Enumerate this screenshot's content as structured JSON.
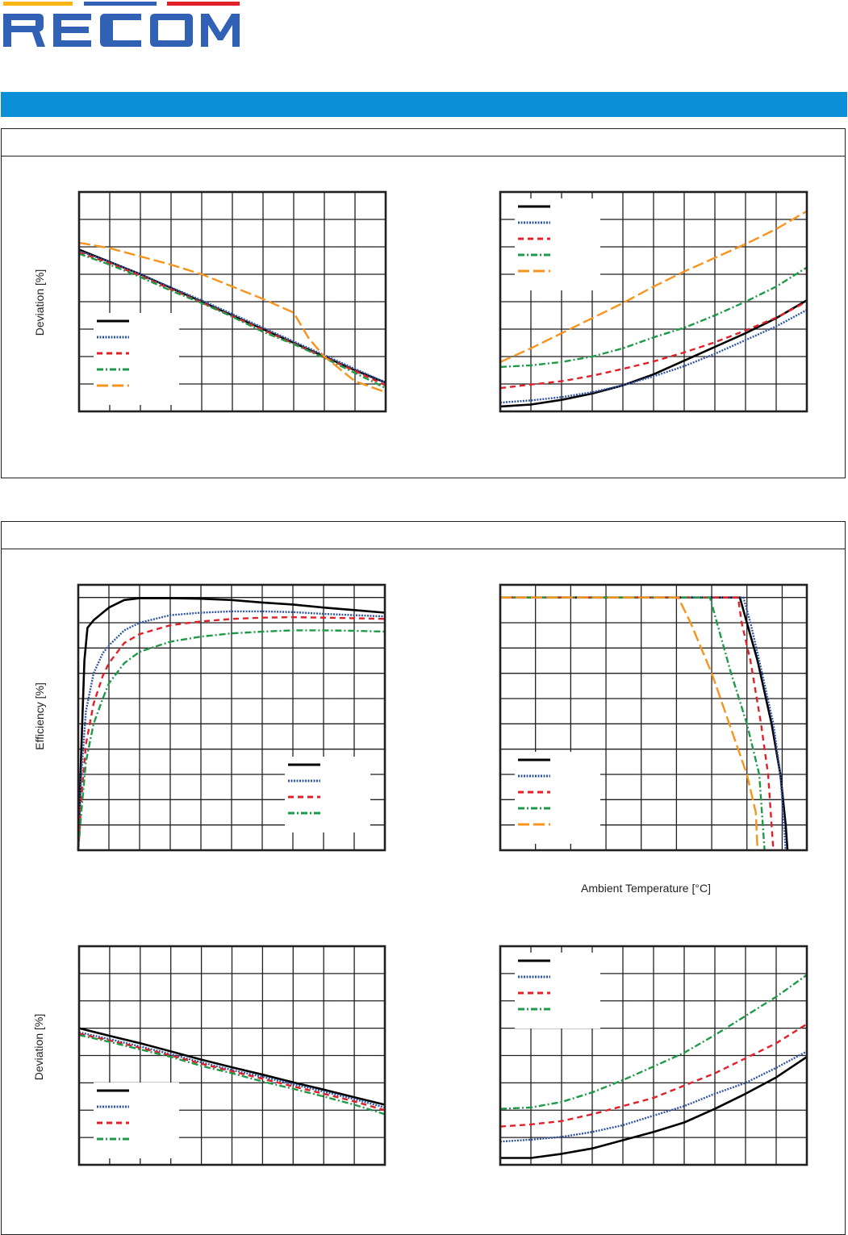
{
  "brand": {
    "logo_text": "RECOM",
    "bar_colors": [
      "#fdb515",
      "#3061b4",
      "#e32028"
    ],
    "logo_color": "#3061b4",
    "banner_color": "#0b8fd6"
  },
  "sections": [
    {
      "id": "section-1"
    },
    {
      "id": "section-2"
    }
  ],
  "style": {
    "grid_color": "#231f20",
    "series_styles": {
      "black": {
        "color": "#000000",
        "dash": "solid"
      },
      "blue": {
        "color": "#2f55a4",
        "dash": "dotted"
      },
      "red": {
        "color": "#e32028",
        "dash": "dashed"
      },
      "green": {
        "color": "#1f9a48",
        "dash": "dashdot"
      },
      "orange": {
        "color": "#f7941d",
        "dash": "longdash"
      }
    }
  },
  "chart_data": [
    {
      "type": "line",
      "title": "",
      "xlabel": "",
      "ylabel": "Deviation [%]",
      "xlim": [
        0,
        10
      ],
      "ylim": [
        0,
        8
      ],
      "x_divisions": 10,
      "y_divisions": 8,
      "grid": true,
      "legend": "lower-left",
      "series": [
        {
          "name": "",
          "style": "black",
          "x": [
            0,
            1,
            2,
            3,
            4,
            5,
            6,
            7,
            8,
            9,
            10
          ],
          "y": [
            5.9,
            5.45,
            5.0,
            4.5,
            4.0,
            3.5,
            3.0,
            2.5,
            2.0,
            1.5,
            1.05
          ]
        },
        {
          "name": "",
          "style": "blue",
          "x": [
            0,
            1,
            2,
            3,
            4,
            5,
            6,
            7,
            8,
            9,
            10
          ],
          "y": [
            5.85,
            5.45,
            5.0,
            4.52,
            4.05,
            3.55,
            3.05,
            2.55,
            2.05,
            1.55,
            1.05
          ]
        },
        {
          "name": "",
          "style": "red",
          "x": [
            0,
            1,
            2,
            3,
            4,
            5,
            6,
            7,
            8,
            9,
            10
          ],
          "y": [
            5.8,
            5.4,
            4.95,
            4.45,
            3.97,
            3.47,
            2.97,
            2.47,
            1.97,
            1.47,
            0.95
          ]
        },
        {
          "name": "",
          "style": "green",
          "x": [
            0,
            1,
            2,
            3,
            4,
            5,
            6,
            7,
            8,
            9,
            10
          ],
          "y": [
            5.75,
            5.35,
            4.9,
            4.4,
            3.95,
            3.45,
            2.9,
            2.45,
            1.95,
            1.4,
            0.85
          ]
        },
        {
          "name": "",
          "style": "orange",
          "x": [
            0,
            1,
            2,
            3,
            4,
            5,
            6,
            7,
            7.5,
            8,
            8.5,
            9,
            10
          ],
          "y": [
            6.15,
            5.95,
            5.65,
            5.35,
            5.0,
            4.55,
            4.1,
            3.6,
            2.65,
            2.0,
            1.55,
            1.1,
            0.7
          ]
        }
      ]
    },
    {
      "type": "line",
      "title": "",
      "xlabel": "",
      "ylabel": "",
      "xlim": [
        0,
        10
      ],
      "ylim": [
        0,
        8
      ],
      "x_divisions": 10,
      "y_divisions": 8,
      "grid": true,
      "legend": "upper-left",
      "series": [
        {
          "name": "",
          "style": "black",
          "x": [
            0,
            1,
            2,
            3,
            4,
            5,
            6,
            7,
            8,
            9,
            10
          ],
          "y": [
            0.18,
            0.25,
            0.42,
            0.65,
            0.95,
            1.35,
            1.85,
            2.35,
            2.85,
            3.4,
            4.05
          ]
        },
        {
          "name": "",
          "style": "blue",
          "x": [
            0,
            1,
            2,
            3,
            4,
            5,
            6,
            7,
            8,
            9,
            10
          ],
          "y": [
            0.32,
            0.4,
            0.52,
            0.7,
            0.95,
            1.28,
            1.65,
            2.1,
            2.6,
            3.1,
            3.7
          ]
        },
        {
          "name": "",
          "style": "red",
          "x": [
            0,
            1,
            2,
            3,
            4,
            5,
            6,
            7,
            8,
            9,
            10
          ],
          "y": [
            0.85,
            0.98,
            1.1,
            1.3,
            1.55,
            1.82,
            2.15,
            2.52,
            2.95,
            3.42,
            4.0
          ]
        },
        {
          "name": "",
          "style": "green",
          "x": [
            0,
            1,
            2,
            3,
            4,
            5,
            6,
            7,
            8,
            9,
            10
          ],
          "y": [
            1.62,
            1.68,
            1.8,
            2.0,
            2.3,
            2.7,
            3.05,
            3.5,
            4.0,
            4.55,
            5.25
          ]
        },
        {
          "name": "",
          "style": "orange",
          "x": [
            0,
            1,
            2,
            3,
            4,
            5,
            6,
            7,
            8,
            9,
            10
          ],
          "y": [
            1.8,
            2.3,
            2.85,
            3.4,
            3.95,
            4.55,
            5.1,
            5.6,
            6.1,
            6.65,
            7.3
          ]
        }
      ]
    },
    {
      "type": "line",
      "title": "",
      "xlabel": "",
      "ylabel": "Efficiency [%]",
      "xlim": [
        0,
        10
      ],
      "ylim": [
        0,
        10.5
      ],
      "x_divisions": 10,
      "y_divisions": 10,
      "grid": true,
      "legend": "lower-right",
      "series": [
        {
          "name": "",
          "style": "black",
          "x": [
            0,
            0.1,
            0.2,
            0.3,
            0.5,
            1,
            1.5,
            2,
            3,
            4,
            5,
            6,
            7,
            8,
            9,
            10
          ],
          "y": [
            0,
            4,
            7.5,
            8.8,
            9.1,
            9.6,
            9.9,
            9.97,
            9.97,
            9.95,
            9.9,
            9.8,
            9.72,
            9.6,
            9.5,
            9.4
          ]
        },
        {
          "name": "",
          "style": "blue",
          "x": [
            0,
            0.1,
            0.25,
            0.5,
            0.8,
            1,
            1.5,
            2,
            3,
            4,
            5,
            6,
            7,
            8,
            9,
            10
          ],
          "y": [
            0,
            3,
            5.5,
            7.0,
            7.8,
            8.1,
            8.7,
            9.0,
            9.3,
            9.4,
            9.45,
            9.45,
            9.42,
            9.35,
            9.3,
            9.25
          ]
        },
        {
          "name": "",
          "style": "red",
          "x": [
            0,
            0.1,
            0.25,
            0.5,
            0.8,
            1,
            1.5,
            2,
            3,
            4,
            5,
            6,
            7,
            8,
            9,
            10
          ],
          "y": [
            0,
            2,
            4.2,
            5.8,
            6.9,
            7.4,
            8.2,
            8.55,
            8.9,
            9.05,
            9.15,
            9.2,
            9.22,
            9.2,
            9.18,
            9.15
          ]
        },
        {
          "name": "",
          "style": "green",
          "x": [
            0,
            0.1,
            0.25,
            0.5,
            0.8,
            1,
            1.5,
            2,
            3,
            4,
            5,
            6,
            7,
            8,
            9,
            10
          ],
          "y": [
            0,
            1.5,
            3.5,
            5.0,
            6.0,
            6.6,
            7.4,
            7.85,
            8.25,
            8.45,
            8.58,
            8.65,
            8.7,
            8.7,
            8.68,
            8.65
          ]
        }
      ]
    },
    {
      "type": "line",
      "title": "",
      "xlabel": "Ambient Temperature [°C]",
      "ylabel": "",
      "xlim": [
        0,
        8.7
      ],
      "ylim": [
        0,
        10.5
      ],
      "x_divisions": 8.7,
      "y_divisions": 10,
      "grid": true,
      "legend": "lower-left",
      "series": [
        {
          "name": "",
          "style": "black",
          "x": [
            0,
            6.8,
            7.0,
            7.3,
            7.7,
            7.95,
            8.1,
            8.15
          ],
          "y": [
            10,
            10,
            9,
            7.5,
            5,
            3,
            1,
            0
          ]
        },
        {
          "name": "",
          "style": "blue",
          "x": [
            0,
            6.9,
            7.1,
            7.35,
            7.75,
            7.95,
            8.05,
            8.1
          ],
          "y": [
            10,
            10,
            9,
            7.5,
            5,
            3,
            1,
            0
          ]
        },
        {
          "name": "",
          "style": "red",
          "x": [
            0,
            6.75,
            6.85,
            7.1,
            7.4,
            7.6,
            7.7,
            7.75
          ],
          "y": [
            10,
            10,
            9,
            7.5,
            5,
            3,
            1,
            0
          ]
        },
        {
          "name": "",
          "style": "green",
          "x": [
            0,
            5.95,
            6.15,
            6.55,
            7.0,
            7.35,
            7.45,
            7.5
          ],
          "y": [
            10,
            10,
            9,
            7.0,
            5,
            3,
            1,
            0
          ]
        },
        {
          "name": "",
          "style": "orange",
          "x": [
            0,
            5.05,
            5.4,
            6.0,
            6.5,
            7.0,
            7.25,
            7.3
          ],
          "y": [
            10,
            10,
            9,
            7.0,
            5,
            3,
            1.5,
            0
          ]
        }
      ]
    },
    {
      "type": "line",
      "title": "",
      "xlabel": "",
      "ylabel": "Deviation [%]",
      "xlim": [
        0,
        10
      ],
      "ylim": [
        0,
        8
      ],
      "x_divisions": 10,
      "y_divisions": 8,
      "grid": true,
      "legend": "lower-left",
      "series": [
        {
          "name": "",
          "style": "black",
          "x": [
            0,
            1,
            2,
            3,
            4,
            5,
            6,
            7,
            8,
            9,
            10
          ],
          "y": [
            5.0,
            4.72,
            4.45,
            4.15,
            3.85,
            3.57,
            3.3,
            3.02,
            2.75,
            2.47,
            2.2
          ]
        },
        {
          "name": "",
          "style": "blue",
          "x": [
            0,
            1,
            2,
            3,
            4,
            5,
            6,
            7,
            8,
            9,
            10
          ],
          "y": [
            4.85,
            4.6,
            4.33,
            4.05,
            3.75,
            3.47,
            3.22,
            2.95,
            2.68,
            2.4,
            2.1
          ]
        },
        {
          "name": "",
          "style": "red",
          "x": [
            0,
            1,
            2,
            3,
            4,
            5,
            6,
            7,
            8,
            9,
            10
          ],
          "y": [
            4.8,
            4.55,
            4.28,
            4.0,
            3.7,
            3.42,
            3.15,
            2.87,
            2.6,
            2.32,
            2.0
          ]
        },
        {
          "name": "",
          "style": "green",
          "x": [
            0,
            1,
            2,
            3,
            4,
            5,
            6,
            7,
            8,
            9,
            10
          ],
          "y": [
            4.75,
            4.5,
            4.22,
            3.95,
            3.62,
            3.35,
            3.05,
            2.78,
            2.5,
            2.2,
            1.85
          ]
        }
      ]
    },
    {
      "type": "line",
      "title": "",
      "xlabel": "",
      "ylabel": "",
      "xlim": [
        0,
        10
      ],
      "ylim": [
        0,
        8
      ],
      "x_divisions": 10,
      "y_divisions": 8,
      "grid": true,
      "legend": "upper-left",
      "series": [
        {
          "name": "",
          "style": "black",
          "x": [
            0,
            1,
            2,
            3,
            4,
            5,
            6,
            7,
            8,
            9,
            10
          ],
          "y": [
            0.25,
            0.25,
            0.4,
            0.6,
            0.9,
            1.2,
            1.55,
            2.05,
            2.6,
            3.2,
            3.95
          ]
        },
        {
          "name": "",
          "style": "blue",
          "x": [
            0,
            1,
            2,
            3,
            4,
            5,
            6,
            7,
            8,
            9,
            10
          ],
          "y": [
            0.85,
            0.92,
            1.02,
            1.2,
            1.45,
            1.8,
            2.15,
            2.6,
            3.0,
            3.55,
            4.15
          ]
        },
        {
          "name": "",
          "style": "red",
          "x": [
            0,
            1,
            2,
            3,
            4,
            5,
            6,
            7,
            8,
            9,
            10
          ],
          "y": [
            1.4,
            1.48,
            1.6,
            1.85,
            2.15,
            2.45,
            2.9,
            3.35,
            3.9,
            4.45,
            5.15
          ]
        },
        {
          "name": "",
          "style": "green",
          "x": [
            0,
            1,
            2,
            3,
            4,
            5,
            6,
            7,
            8,
            9,
            10
          ],
          "y": [
            2.05,
            2.1,
            2.3,
            2.65,
            3.1,
            3.6,
            4.1,
            4.75,
            5.45,
            6.15,
            6.95
          ]
        }
      ]
    }
  ]
}
